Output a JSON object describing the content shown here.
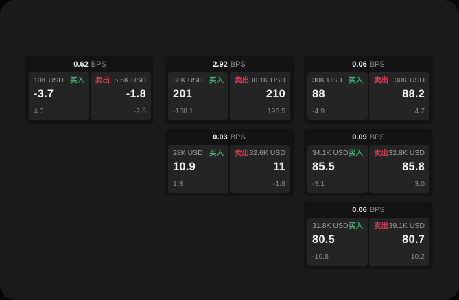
{
  "labels": {
    "bps": "BPS",
    "buy": "买入",
    "sell": "卖出"
  },
  "colors": {
    "buy": "#3dab72",
    "sell": "#cf3b55"
  },
  "cards": [
    {
      "bps": "0.62",
      "buy": {
        "amount": "10K USD",
        "value": "-3.7",
        "sub": "4.3"
      },
      "sell": {
        "amount": "5.5K USD",
        "value": "-1.8",
        "sub": "-2.6"
      }
    },
    {
      "bps": "2.92",
      "buy": {
        "amount": "30K USD",
        "value": "201",
        "sub": "-188.1"
      },
      "sell": {
        "amount": "30.1K USD",
        "value": "210",
        "sub": "196.5"
      }
    },
    {
      "bps": "0.06",
      "buy": {
        "amount": "30K USD",
        "value": "88",
        "sub": "-4.9"
      },
      "sell": {
        "amount": "30K USD",
        "value": "88.2",
        "sub": "4.7"
      }
    },
    {
      "bps": "0.03",
      "buy": {
        "amount": "28K USD",
        "value": "10.9",
        "sub": "1.3"
      },
      "sell": {
        "amount": "32.6K USD",
        "value": "11",
        "sub": "-1.8"
      }
    },
    {
      "bps": "0.09",
      "buy": {
        "amount": "34.1K USD",
        "value": "85.5",
        "sub": "-3.1"
      },
      "sell": {
        "amount": "32.8K USD",
        "value": "85.8",
        "sub": "3.0"
      }
    },
    {
      "bps": "0.06",
      "buy": {
        "amount": "31.8K USD",
        "value": "80.5",
        "sub": "-10.8"
      },
      "sell": {
        "amount": "39.1K USD",
        "value": "80.7",
        "sub": "10.2"
      }
    }
  ]
}
